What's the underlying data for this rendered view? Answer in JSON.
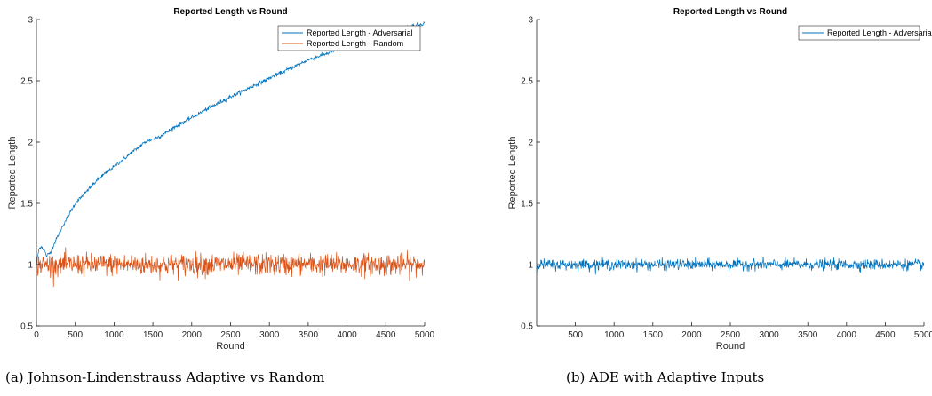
{
  "chart_data": [
    {
      "type": "line",
      "title": "Reported Length vs Round",
      "xlabel": "Round",
      "ylabel": "Reported Length",
      "xlim": [
        0,
        5000
      ],
      "ylim": [
        0.5,
        3
      ],
      "xticks": [
        0,
        500,
        1000,
        1500,
        2000,
        2500,
        3000,
        3500,
        4000,
        4500,
        5000
      ],
      "yticks": [
        0.5,
        1,
        1.5,
        2,
        2.5,
        3
      ],
      "legend": "top-right",
      "series": [
        {
          "name": "Reported Length - Adversarial",
          "color": "#0072BD",
          "trend_x": [
            0,
            30,
            60,
            100,
            130,
            180,
            250,
            350,
            500,
            650,
            800,
            1000,
            1200,
            1400,
            1600,
            1800,
            2000,
            2200,
            2500,
            3000,
            3500,
            4000,
            4500,
            5000
          ],
          "trend_y": [
            1.0,
            1.12,
            1.15,
            1.12,
            1.07,
            1.1,
            1.2,
            1.33,
            1.5,
            1.6,
            1.7,
            1.8,
            1.9,
            2.0,
            2.05,
            2.13,
            2.2,
            2.27,
            2.37,
            2.52,
            2.67,
            2.78,
            2.9,
            2.97
          ],
          "noise": 0.008
        },
        {
          "name": "Reported Length - Random",
          "color": "#D95319",
          "trend_x": [
            0,
            5000
          ],
          "trend_y": [
            1.0,
            1.0
          ],
          "noise": 0.045
        }
      ],
      "caption": "(a) Johnson-Lindenstrauss Adaptive vs Random"
    },
    {
      "type": "line",
      "title": "Reported Length vs Round",
      "xlabel": "Round",
      "ylabel": "Reported Length",
      "xlim": [
        0,
        5000
      ],
      "ylim": [
        0.5,
        3
      ],
      "xticks": [
        500,
        1000,
        1500,
        2000,
        2500,
        3000,
        3500,
        4000,
        4500,
        5000
      ],
      "yticks": [
        0.5,
        1,
        1.5,
        2,
        2.5,
        3
      ],
      "legend": "top-right",
      "series": [
        {
          "name": "Reported Length - Adversarial",
          "color": "#0072BD",
          "trend_x": [
            0,
            5000
          ],
          "trend_y": [
            1.0,
            1.0
          ],
          "noise": 0.022
        }
      ],
      "caption": "(b) ADE with Adaptive Inputs"
    }
  ]
}
